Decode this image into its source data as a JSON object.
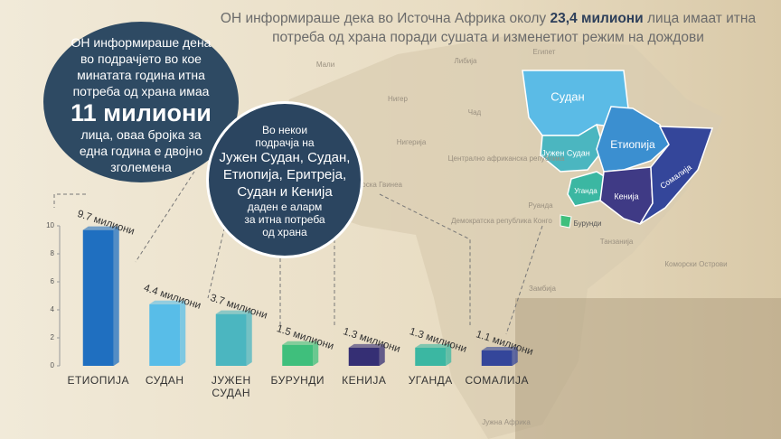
{
  "header": {
    "before": "ОН информираше дека во Источна Африка околу",
    "highlight": "23,4 милиони",
    "after": "лица имаат итна потреба од храна поради сушата и изменетиот режим на дождови"
  },
  "bubble_left": {
    "top": "ОН информираше дена во подрачјето во кое минатата година итна потреба од храна имаа",
    "highlight": "11 милиони",
    "bottom": "лица, оваа бројка за една година е двојно зголемена"
  },
  "bubble_right": {
    "top": "Во некои подрачја на",
    "highlight": "Јужен Судан, Судан, Етиопија, Еритреја, Судан и Кенија",
    "bottom": "даден е аларм за итна потреба од храна"
  },
  "map": {
    "regions": [
      "Судан",
      "Јужен Судан",
      "Етиопија",
      "Уганда",
      "Кенија",
      "Сомалија",
      "Бурунди"
    ],
    "background_labels": [
      "Египет",
      "Либија",
      "Мали",
      "Нигер",
      "Чад",
      "Нигерија",
      "Централно африканска република",
      "Екваторска Гвинеа",
      "Демократска република Конго",
      "Руанда",
      "Танзанија",
      "Замбија",
      "Коморски Острови",
      "Јужна Африка"
    ]
  },
  "chart_data": {
    "type": "bar",
    "categories": [
      "ЕТИОПИЈА",
      "СУДАН",
      "ЈУЖЕН СУДАН",
      "БУРУНДИ",
      "КЕНИЈА",
      "УГАНДА",
      "СОМАЛИЈА"
    ],
    "values": [
      9.7,
      4.4,
      3.7,
      1.5,
      1.3,
      1.3,
      1.1
    ],
    "value_labels": [
      "9.7 милиони",
      "4.4 милиони",
      "3.7 милиони",
      "1.5 милиони",
      "1.3 милиони",
      "1.3 милиони",
      "1.1 милиони"
    ],
    "colors": [
      "#1f6fc0",
      "#58bde8",
      "#4bb6c0",
      "#3fbf7c",
      "#352f74",
      "#3bb7a2",
      "#34469a"
    ],
    "ylim": [
      0,
      10
    ],
    "yticks": [
      0,
      2,
      4,
      6,
      8,
      10
    ]
  }
}
